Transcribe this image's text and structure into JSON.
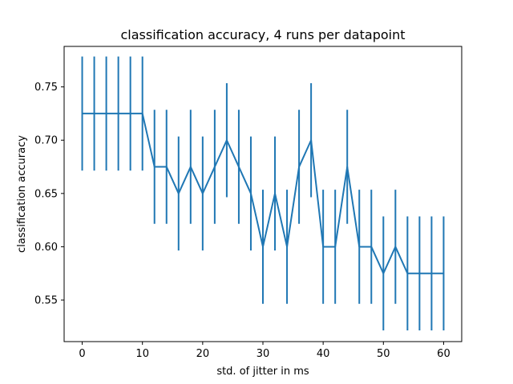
{
  "chart_data": {
    "type": "line",
    "title": "classification accuracy, 4 runs per datapoint",
    "xlabel": "std. of jitter in ms",
    "ylabel": "classification accuracy",
    "xlim": [
      -3,
      63
    ],
    "ylim": [
      0.511,
      0.788
    ],
    "xticks": [
      0,
      10,
      20,
      30,
      40,
      50,
      60
    ],
    "yticks": [
      0.55,
      0.6,
      0.65,
      0.7,
      0.75
    ],
    "ytick_labels": [
      "0.55",
      "0.60",
      "0.65",
      "0.70",
      "0.75"
    ],
    "grid": false,
    "colors": {
      "series": "#1f77b4",
      "axes": "#000000"
    },
    "series": [
      {
        "x": [
          0,
          2,
          4,
          6,
          8,
          10,
          12,
          14,
          16,
          18,
          20,
          22,
          24,
          26,
          28,
          30,
          32,
          34,
          36,
          38,
          40,
          42,
          44,
          46,
          48,
          50,
          52,
          54,
          56,
          58,
          60
        ],
        "y": [
          0.725,
          0.725,
          0.725,
          0.725,
          0.725,
          0.725,
          0.675,
          0.675,
          0.65,
          0.675,
          0.65,
          0.675,
          0.7,
          0.675,
          0.65,
          0.6,
          0.65,
          0.6,
          0.675,
          0.7,
          0.6,
          0.6,
          0.675,
          0.6,
          0.6,
          0.575,
          0.6,
          0.575,
          0.575,
          0.575,
          0.575
        ],
        "yerr": 0.0535
      }
    ]
  }
}
